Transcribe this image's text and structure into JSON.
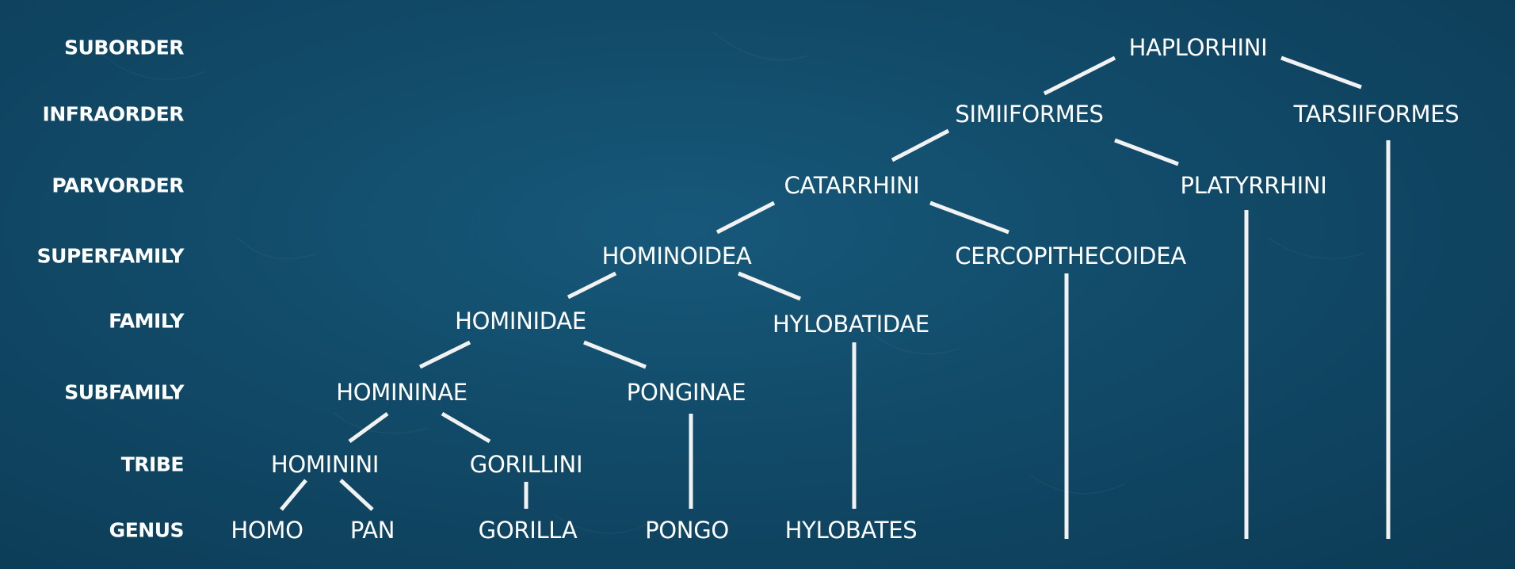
{
  "ranks": {
    "suborder": "SUBORDER",
    "infraorder": "INFRAORDER",
    "parvorder": "PARVORDER",
    "superfamily": "SUPERFAMILY",
    "family": "FAMILY",
    "subfamily": "SUBFAMILY",
    "tribe": "TRIBE",
    "genus": "GENUS"
  },
  "taxa": {
    "haplorhini": "HAPLORHINI",
    "simiiformes": "SIMIIFORMES",
    "tarsiiformes": "TARSIIFORMES",
    "catarrhini": "CATARRHINI",
    "platyrrhini": "PLATYRRHINI",
    "hominoidea": "HOMINOIDEA",
    "cercopithecoidea": "CERCOPITHECOIDEA",
    "hominidae": "HOMINIDAE",
    "hylobatidae": "HYLOBATIDAE",
    "homininae": "HOMININAE",
    "ponginae": "PONGINAE",
    "hominini": "HOMININI",
    "gorillini": "GORILLINI",
    "homo": "HOMO",
    "pan": "PAN",
    "gorilla": "GORILLA",
    "pongo": "PONGO",
    "hylobates": "HYLOBATES"
  },
  "tree": {
    "edges": [
      [
        "haplorhini",
        "simiiformes"
      ],
      [
        "haplorhini",
        "tarsiiformes"
      ],
      [
        "simiiformes",
        "catarrhini"
      ],
      [
        "simiiformes",
        "platyrrhini"
      ],
      [
        "catarrhini",
        "hominoidea"
      ],
      [
        "catarrhini",
        "cercopithecoidea"
      ],
      [
        "hominoidea",
        "hominidae"
      ],
      [
        "hominoidea",
        "hylobatidae"
      ],
      [
        "hominidae",
        "homininae"
      ],
      [
        "hominidae",
        "ponginae"
      ],
      [
        "homininae",
        "hominini"
      ],
      [
        "homininae",
        "gorillini"
      ],
      [
        "hominini",
        "homo"
      ],
      [
        "hominini",
        "pan"
      ],
      [
        "gorillini",
        "gorilla"
      ],
      [
        "ponginae",
        "pongo"
      ],
      [
        "hylobatidae",
        "hylobates"
      ],
      [
        "cercopithecoidea",
        "genus-level"
      ],
      [
        "platyrrhini",
        "genus-level"
      ],
      [
        "tarsiiformes",
        "genus-level"
      ]
    ]
  },
  "colors": {
    "background": "#114a68",
    "text": "#ffffff",
    "lines": "#f2f2f2"
  }
}
